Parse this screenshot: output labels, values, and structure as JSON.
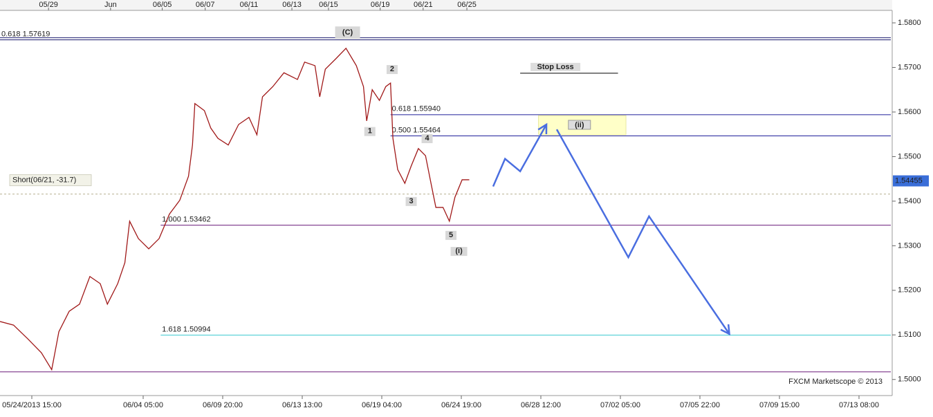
{
  "chart_data": {
    "type": "line",
    "watermark": "FXCM Marketscope © 2013",
    "xlim": [
      -4,
      108
    ],
    "ylim": [
      1.4967,
      1.5828
    ],
    "yticks": [
      {
        "value": 1.58,
        "label": "1.5800"
      },
      {
        "value": 1.57,
        "label": "1.5700"
      },
      {
        "value": 1.56,
        "label": "1.5600"
      },
      {
        "value": 1.55,
        "label": "1.5500"
      },
      {
        "value": 1.54,
        "label": "1.5400"
      },
      {
        "value": 1.53,
        "label": "1.5300"
      },
      {
        "value": 1.52,
        "label": "1.5200"
      },
      {
        "value": 1.51,
        "label": "1.5100"
      },
      {
        "value": 1.5,
        "label": "1.5000"
      }
    ],
    "xticks": [
      {
        "value": 0,
        "label": "05/24/2013 15:00"
      },
      {
        "value": 14,
        "label": "06/04 05:00"
      },
      {
        "value": 24,
        "label": "06/09 20:00"
      },
      {
        "value": 34,
        "label": "06/13 13:00"
      },
      {
        "value": 44,
        "label": "06/19 04:00"
      },
      {
        "value": 54,
        "label": "06/24 19:00"
      },
      {
        "value": 64,
        "label": "06/28 12:00"
      },
      {
        "value": 74,
        "label": "07/02 05:00"
      },
      {
        "value": 84,
        "label": "07/05 22:00"
      },
      {
        "value": 94,
        "label": "07/09 15:00"
      },
      {
        "value": 104,
        "label": "07/13 08:00"
      }
    ],
    "x2ticks": [
      {
        "value": 2.1,
        "label": "05/29"
      },
      {
        "value": 9.9,
        "label": "Jun"
      },
      {
        "value": 16.4,
        "label": "06/05"
      },
      {
        "value": 21.8,
        "label": "06/07"
      },
      {
        "value": 27.3,
        "label": "06/11"
      },
      {
        "value": 32.7,
        "label": "06/13"
      },
      {
        "value": 37.3,
        "label": "06/15"
      },
      {
        "value": 43.8,
        "label": "06/19"
      },
      {
        "value": 49.2,
        "label": "06/21"
      },
      {
        "value": 54.7,
        "label": "06/25"
      }
    ],
    "series": [
      {
        "color": "#a01818",
        "x": [
          -4.0,
          -2.3,
          -0.5,
          1.2,
          2.5,
          3.4,
          4.7,
          6.0,
          7.3,
          8.6,
          9.5,
          10.8,
          11.7,
          12.3,
          13.4,
          14.7,
          16.0,
          17.3,
          18.6,
          19.7,
          20.2,
          20.5,
          21.7,
          22.5,
          23.4,
          24.7,
          26.0,
          27.3,
          28.3,
          29.0,
          30.3,
          31.7,
          33.4,
          34.3,
          35.6,
          36.2,
          36.9,
          38.2,
          39.5,
          40.8,
          41.7,
          42.1,
          42.8,
          43.7,
          44.5,
          45.1,
          45.4,
          46.0,
          46.9,
          47.7,
          48.6,
          49.5,
          50.1,
          50.8,
          51.7,
          52.5,
          53.2,
          54.1,
          55.0
        ],
        "values": [
          1.513,
          1.5122,
          1.5091,
          1.506,
          1.5022,
          1.5107,
          1.5153,
          1.5169,
          1.5231,
          1.5215,
          1.5169,
          1.5215,
          1.5262,
          1.5355,
          1.5316,
          1.5293,
          1.5316,
          1.5371,
          1.5402,
          1.5456,
          1.5526,
          1.5619,
          1.5603,
          1.5564,
          1.5541,
          1.5526,
          1.5572,
          1.5588,
          1.5549,
          1.5634,
          1.5657,
          1.5688,
          1.5673,
          1.5712,
          1.5704,
          1.5634,
          1.5696,
          1.5719,
          1.5743,
          1.5704,
          1.5657,
          1.558,
          1.565,
          1.5626,
          1.5657,
          1.5665,
          1.5541,
          1.5471,
          1.544,
          1.5479,
          1.5518,
          1.5502,
          1.5448,
          1.5386,
          1.5386,
          1.5355,
          1.5409,
          1.5448,
          1.5448
        ]
      },
      {
        "color": "#4a6ee0",
        "x": [
          58.0,
          59.5,
          61.4,
          64.7
        ],
        "values": [
          1.5433,
          1.5495,
          1.5467,
          1.5572
        ]
      },
      {
        "color": "#4a6ee0",
        "x": [
          66.0,
          75.0,
          77.6,
          87.7
        ],
        "values": [
          1.5561,
          1.5274,
          1.5366,
          1.5102
        ]
      }
    ],
    "levels": [
      {
        "label": "0.618 1.57619",
        "value": 1.57619,
        "x_start": -4,
        "color": "#1a1a6e"
      },
      {
        "label": "0.618 1.55940",
        "value": 1.5594,
        "x_start": 45.1,
        "color": "#1f1f9a"
      },
      {
        "label": "0.500 1.55464",
        "value": 1.55464,
        "x_start": 45.1,
        "color": "#1f1f9a"
      },
      {
        "label": "1.000 1.53462",
        "value": 1.53462,
        "x_start": 16.2,
        "color": "#6a1a7a"
      },
      {
        "label": "1.618 1.50994",
        "value": 1.50994,
        "x_start": 16.2,
        "color": "#38c8d0"
      },
      {
        "value": 1.5017,
        "x_start": -4,
        "color": "#6a1a7a"
      }
    ],
    "short_position": {
      "label": "Short(06/21, -31.7)",
      "value": 1.5416
    },
    "last_price": 1.54455,
    "stop_loss": {
      "label": "Stop Loss",
      "value": 1.5687,
      "x": [
        61.4,
        73.7
      ]
    },
    "zone": {
      "label": "(ii)",
      "x": [
        63.7,
        74.7
      ],
      "y": [
        1.5549,
        1.5592
      ]
    },
    "wave_labels": [
      {
        "label": "(C)",
        "x": 39.7,
        "y": 1.5778
      },
      {
        "label": "1",
        "x": 42.5,
        "y": 1.5557
      },
      {
        "label": "2",
        "x": 45.3,
        "y": 1.5696
      },
      {
        "label": "3",
        "x": 47.7,
        "y": 1.54
      },
      {
        "label": "4",
        "x": 49.7,
        "y": 1.5541
      },
      {
        "label": "5",
        "x": 52.7,
        "y": 1.5324
      },
      {
        "label": "(i)",
        "x": 53.7,
        "y": 1.5288
      }
    ]
  }
}
